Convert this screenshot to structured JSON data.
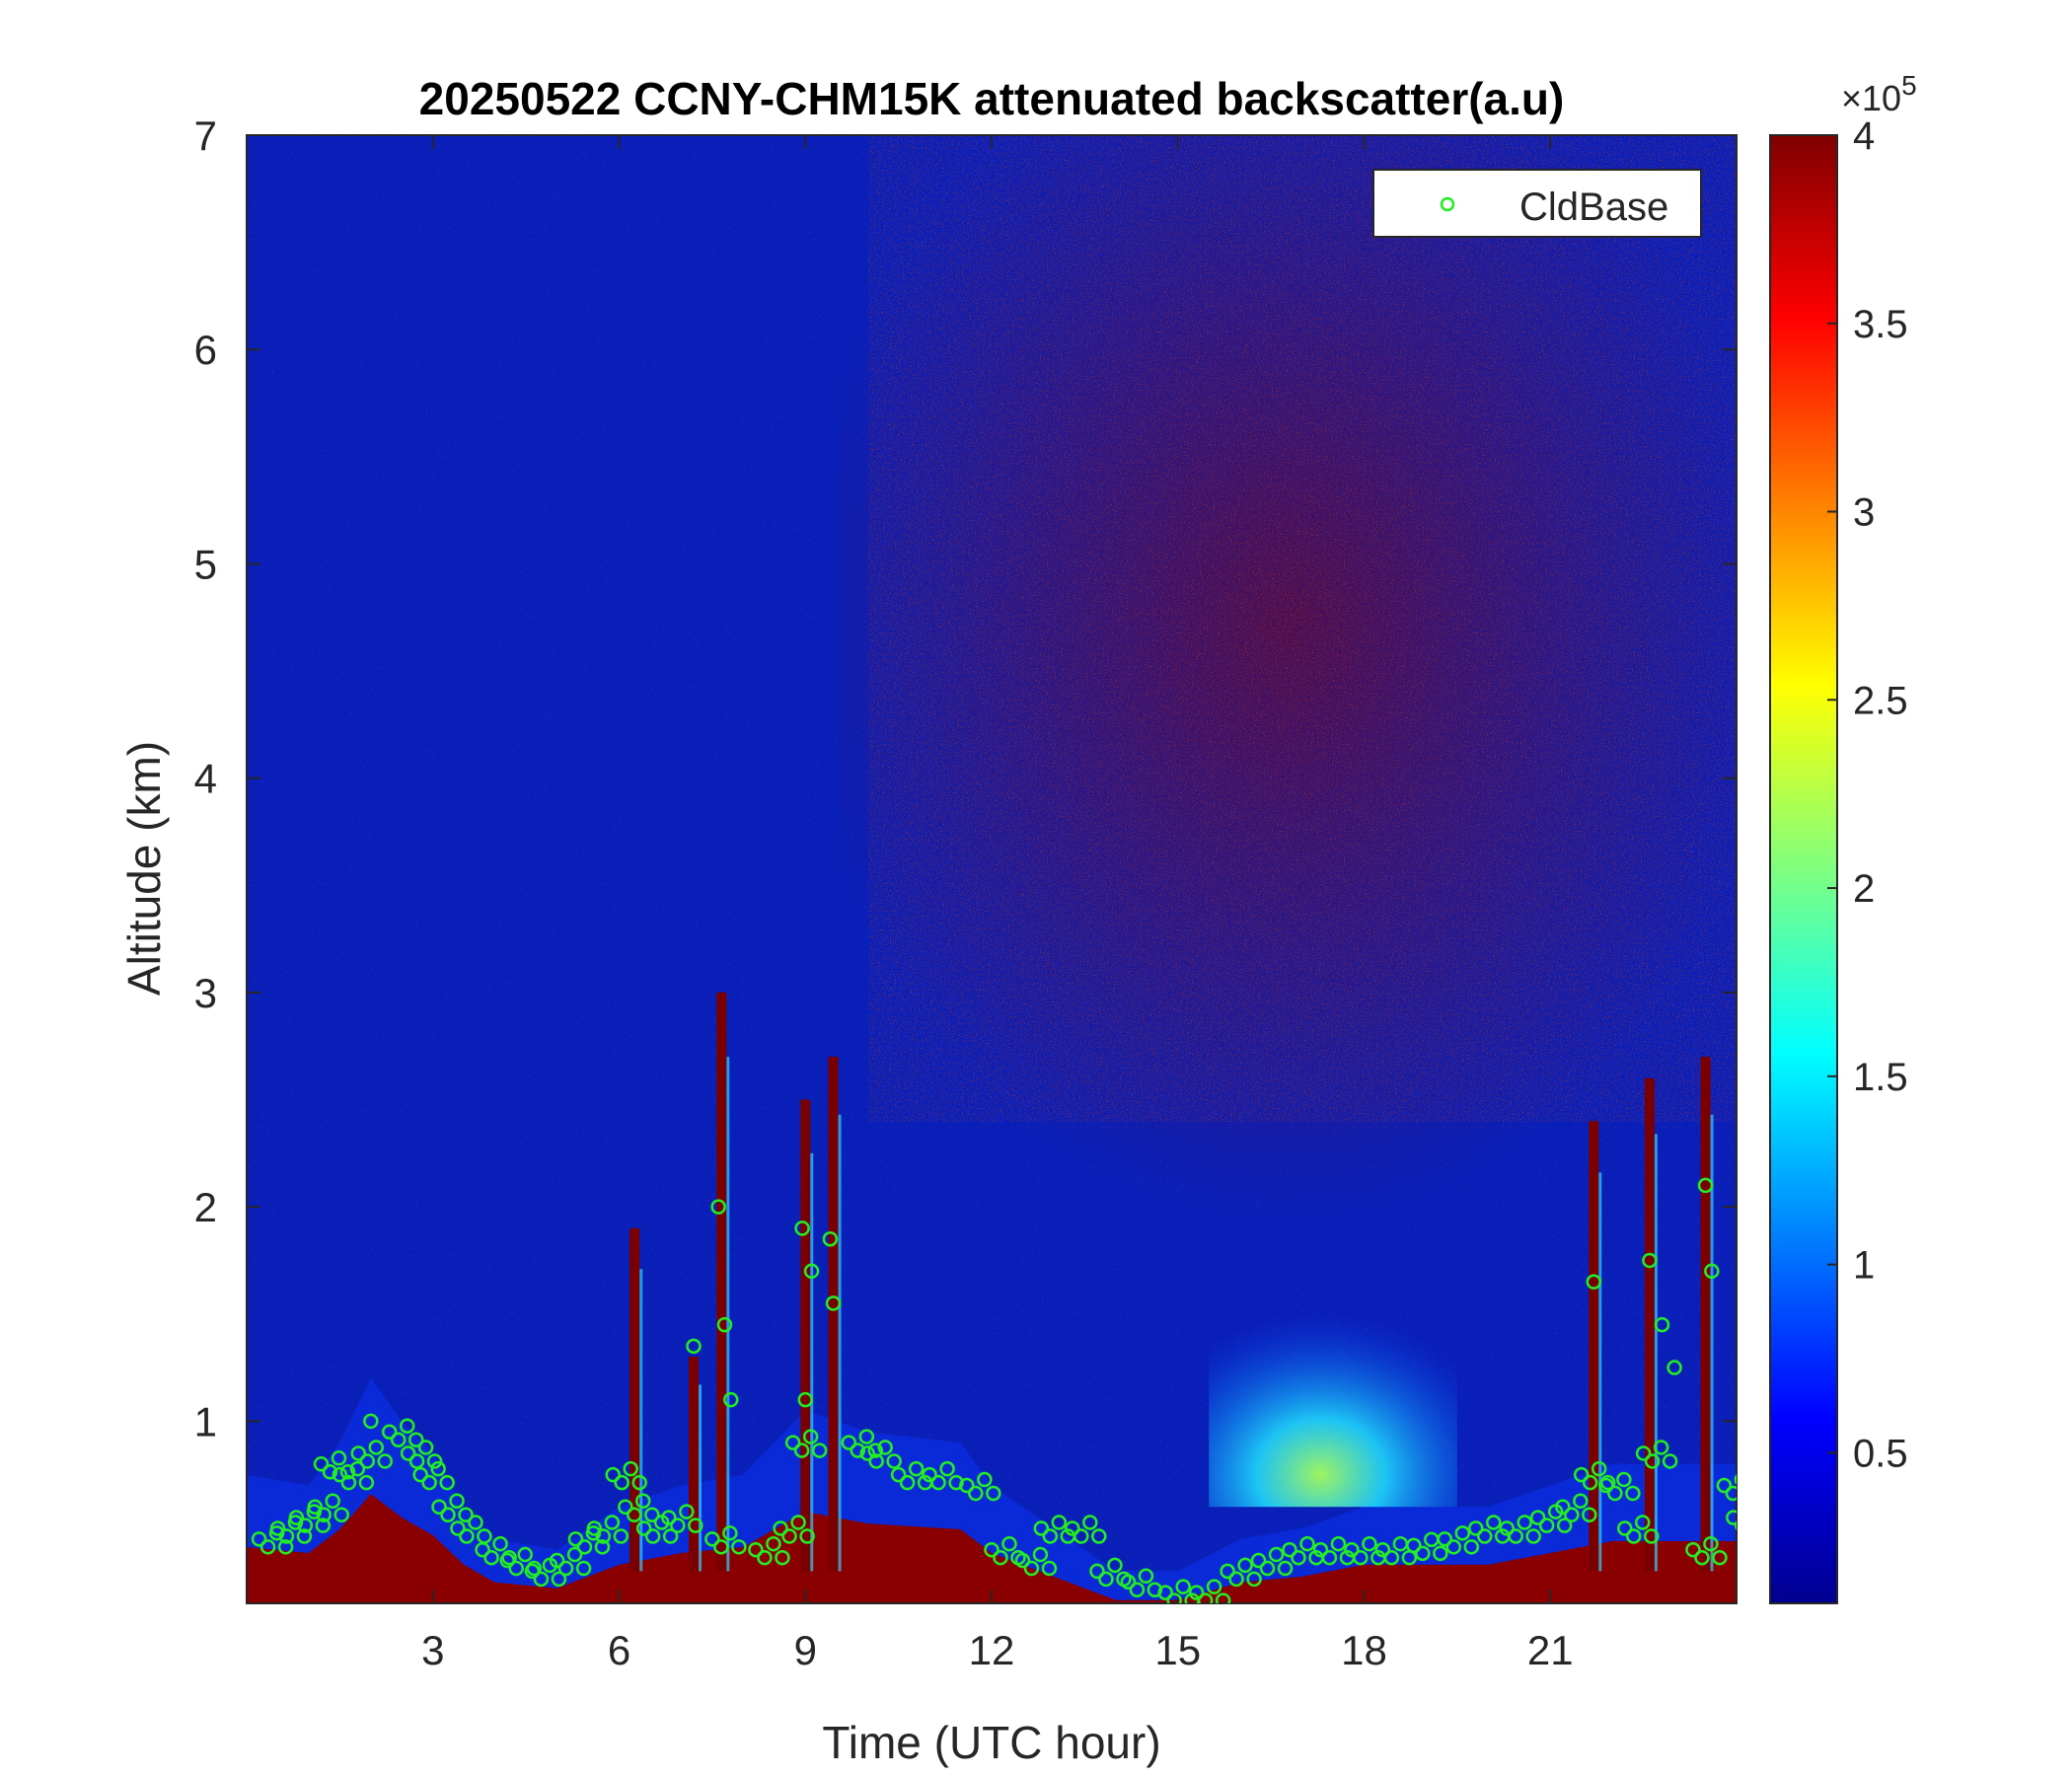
{
  "chart_data": {
    "type": "heatmap",
    "title": "20250522 CCNY-CHM15K attenuated backscatter(a.u)",
    "xlabel": "Time (UTC hour)",
    "ylabel": "Altitude (km)",
    "xlim": [
      0,
      24
    ],
    "ylim": [
      0.15,
      7
    ],
    "xticks": [
      3,
      6,
      9,
      12,
      15,
      18,
      21
    ],
    "yticks": [
      1,
      2,
      3,
      4,
      5,
      6,
      7
    ],
    "colorbar": {
      "colormap": "jet",
      "clim": [
        0.1,
        4
      ],
      "ticks": [
        0.5,
        1,
        1.5,
        2,
        2.5,
        3,
        3.5,
        4
      ],
      "exponent_label": "×10",
      "exponent_power": "5"
    },
    "legend": {
      "location": "top-right",
      "entries": [
        "CldBase"
      ]
    },
    "colors": {
      "cloud_base_marker": "#22ee22"
    },
    "boundary_layer_top_km": [
      [
        0,
        0.75
      ],
      [
        1,
        0.7
      ],
      [
        1.5,
        0.9
      ],
      [
        2,
        1.2
      ],
      [
        2.5,
        1.0
      ],
      [
        3,
        0.85
      ],
      [
        3.5,
        0.6
      ],
      [
        4,
        0.45
      ],
      [
        5,
        0.4
      ],
      [
        6,
        0.6
      ],
      [
        7,
        0.7
      ],
      [
        8,
        0.75
      ],
      [
        9,
        1.05
      ],
      [
        10,
        0.95
      ],
      [
        11.5,
        0.9
      ],
      [
        12,
        0.7
      ],
      [
        13,
        0.5
      ],
      [
        14,
        0.3
      ],
      [
        15,
        0.3
      ],
      [
        16,
        0.45
      ],
      [
        17,
        0.5
      ],
      [
        18,
        0.6
      ],
      [
        19,
        0.6
      ],
      [
        20,
        0.6
      ],
      [
        21,
        0.7
      ],
      [
        22,
        0.8
      ],
      [
        23,
        0.8
      ],
      [
        24,
        0.8
      ]
    ],
    "aerosol_layer": {
      "x_range": [
        15.5,
        19.5
      ],
      "top_km": 1.6,
      "peak_value": 1.6
    },
    "high_signal_columns": [
      {
        "x": 6.25,
        "top_km": 1.9
      },
      {
        "x": 7.2,
        "top_km": 1.3
      },
      {
        "x": 7.65,
        "top_km": 3.0
      },
      {
        "x": 9.0,
        "top_km": 2.5
      },
      {
        "x": 9.45,
        "top_km": 2.7
      },
      {
        "x": 21.7,
        "top_km": 2.4
      },
      {
        "x": 22.6,
        "top_km": 2.6
      },
      {
        "x": 23.5,
        "top_km": 2.7
      }
    ],
    "series": [
      {
        "name": "CldBase",
        "marker": "circle",
        "points": [
          [
            0.2,
            0.45
          ],
          [
            0.5,
            0.5
          ],
          [
            0.8,
            0.55
          ],
          [
            1.1,
            0.6
          ],
          [
            1.2,
            0.8
          ],
          [
            1.5,
            0.75
          ],
          [
            1.8,
            0.85
          ],
          [
            2.0,
            1.0
          ],
          [
            2.3,
            0.95
          ],
          [
            2.6,
            0.85
          ],
          [
            2.8,
            0.75
          ],
          [
            3.1,
            0.6
          ],
          [
            3.4,
            0.5
          ],
          [
            3.8,
            0.4
          ],
          [
            4.2,
            0.35
          ],
          [
            4.6,
            0.3
          ],
          [
            5.0,
            0.35
          ],
          [
            5.3,
            0.45
          ],
          [
            5.6,
            0.5
          ],
          [
            5.9,
            0.75
          ],
          [
            6.1,
            0.6
          ],
          [
            6.4,
            0.5
          ],
          [
            6.8,
            0.55
          ],
          [
            7.2,
            1.35
          ],
          [
            7.5,
            0.45
          ],
          [
            7.6,
            2.0
          ],
          [
            7.7,
            1.45
          ],
          [
            7.8,
            1.1
          ],
          [
            8.2,
            0.4
          ],
          [
            8.6,
            0.5
          ],
          [
            8.8,
            0.9
          ],
          [
            8.95,
            1.9
          ],
          [
            9.0,
            1.1
          ],
          [
            9.1,
            1.7
          ],
          [
            9.4,
            1.85
          ],
          [
            9.45,
            1.55
          ],
          [
            9.7,
            0.9
          ],
          [
            10.0,
            0.85
          ],
          [
            10.5,
            0.75
          ],
          [
            11.0,
            0.75
          ],
          [
            11.6,
            0.7
          ],
          [
            12.0,
            0.4
          ],
          [
            12.5,
            0.35
          ],
          [
            12.8,
            0.5
          ],
          [
            13.3,
            0.5
          ],
          [
            13.7,
            0.3
          ],
          [
            14.2,
            0.25
          ],
          [
            14.8,
            0.2
          ],
          [
            15.3,
            0.2
          ],
          [
            15.8,
            0.3
          ],
          [
            16.3,
            0.35
          ],
          [
            16.8,
            0.4
          ],
          [
            17.3,
            0.4
          ],
          [
            17.8,
            0.4
          ],
          [
            18.3,
            0.4
          ],
          [
            18.8,
            0.42
          ],
          [
            19.3,
            0.45
          ],
          [
            19.8,
            0.5
          ],
          [
            20.3,
            0.5
          ],
          [
            20.8,
            0.55
          ],
          [
            21.2,
            0.6
          ],
          [
            21.5,
            0.75
          ],
          [
            21.7,
            1.65
          ],
          [
            21.9,
            0.7
          ],
          [
            22.2,
            0.5
          ],
          [
            22.5,
            0.85
          ],
          [
            22.6,
            1.75
          ],
          [
            22.8,
            1.45
          ],
          [
            23.0,
            1.25
          ],
          [
            23.3,
            0.4
          ],
          [
            23.5,
            2.1
          ],
          [
            23.6,
            1.7
          ],
          [
            23.8,
            0.7
          ],
          [
            23.95,
            0.55
          ]
        ]
      }
    ]
  }
}
